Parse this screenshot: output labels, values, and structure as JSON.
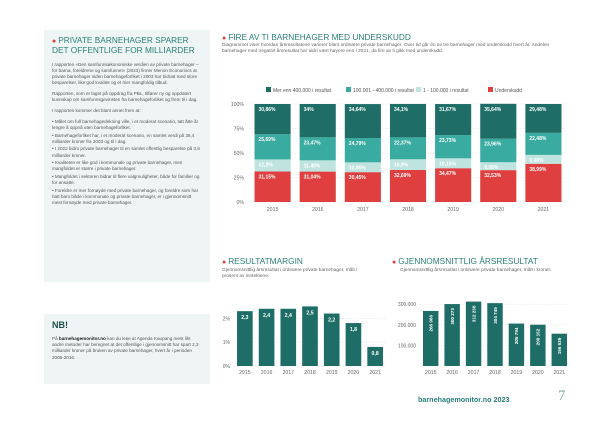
{
  "left": {
    "title": "PRIVATE BARNEHAGER SPARER DET OFFENTLIGE FOR MILLIARDER",
    "para1": "I rapporten «Den samfunnsøkonomiske verdien av private barnehager – for barna, foreldrene og samfunnet» (2023) finner Menon Economics at private barnehager siden barnehageforliket i 2003 har bidratt med store besparelser, like god kvalitet og et mer mangfoldig tilbud.",
    "para2": "Rapporten, som er laget på oppdrag fra PBL, tilfører ny og oppdatert kunnskap om samfunnsgevinsten fra barnehageforliket og frem til i dag.",
    "para3": "I rapporten kommer det blant annet frem at:",
    "bullets": [
      "• Målet om full barnehagedekning ville, i et moderat scenario, tatt åtte år lengre å oppnå uten barnehageforliket.",
      "• Barnehageforliket har, i et moderat scenario, en samlet verdi på 36,4 milliarder kroner fra 2003 og til i dag.",
      "• I 2022 bidro private barnehager til en samlet offentlig besparelse på 3,9 milliarder kroner.",
      "• Kvaliteten er like god i kommunale og private barnehager, men mangfoldet er større i private barnehager.",
      "• Mangfoldet i sektoren bidrar til flere valgmuligheter, både for familier og for ansatte.",
      "• Foreldre er mer fornøyde med private barnehager, og foreldre som har hatt barn både i kommunale og private barnehager, er i gjennomsnitt mest fornøyde med private barnehager."
    ]
  },
  "nb": {
    "title": "NB!",
    "text_pre": "På ",
    "text_bold": "barnehagemonitor.no",
    "text_post": " kan du lese at Agenda Kaupang mest likt andre metoder har beregnet at det offentlige i gjennomsnitt har spart 2,3 milliarder kroner på bruken av private barnehager, hvert år i perioden 2006-2016."
  },
  "main": {
    "title": "FIRE AV TI BARNEHAGER MED UNDERSKUDD",
    "subtitle": "Diagrammet viser hvordan årsresultatene varierer blant ordinære private barnehager. Over tid går én av tre barnehager med underskudd hvert år. Andelen barnehager med negativt årsresultat har aldri vært høyere enn i 2021, da fire av ti gikk med underskudd."
  },
  "margin": {
    "title": "RESULTATMARGIN",
    "subtitle": "Gjennomsnittlig årsresultat i ordinære private barnehager, målt i prosent av inntektene."
  },
  "avg": {
    "title": "GJENNOMSNITTLIG ÅRSRESULTAT",
    "subtitle": "Gjennomsnittlig årsresultat i ordinære private barnehager, målt i kroner."
  },
  "footer": {
    "site": "barnehagemonitor.no 2023",
    "page": "7"
  },
  "colors": {
    "dark": "#1e6e67",
    "teal": "#3aaba0",
    "light": "#bfe3df",
    "red": "#e03f3f"
  },
  "chart_data": [
    {
      "type": "bar",
      "stacked": true,
      "categories": [
        "2015",
        "2016",
        "2017",
        "2018",
        "2019",
        "2020",
        "2021"
      ],
      "series": [
        {
          "name": "Underskudd",
          "values": [
            31.15,
            31.04,
            30.45,
            32.69,
            34.47,
            32.53,
            38.99
          ],
          "labels": [
            "31,15%",
            "31,04%",
            "30,45%",
            "32,69%",
            "34,47%",
            "32,53%",
            "38,99%"
          ],
          "color": "#e03f3f"
        },
        {
          "name": "1 - 100.000 i resultat",
          "values": [
            12.3,
            11.49,
            10.05,
            10.9,
            10.1,
            8.08,
            9.08
          ],
          "labels": [
            "12,3%",
            "11,49%",
            "10,05%",
            "10,9%",
            "10,10%",
            "8,08%",
            "9,08%"
          ],
          "color": "#bfe3df"
        },
        {
          "name": "100.001 - 400.000 i resultat",
          "values": [
            25.69,
            23.47,
            24.79,
            22.37,
            23.73,
            23.96,
            22.48
          ],
          "labels": [
            "25,69%",
            "23,47%",
            "24,79%",
            "22,37%",
            "23,73%",
            "23,96%",
            "22,48%"
          ],
          "color": "#3aaba0"
        },
        {
          "name": "Mer enn 400.000 i resultat",
          "values": [
            30.86,
            34,
            34.64,
            34.1,
            31.67,
            35.64,
            29.48
          ],
          "labels": [
            "30,86%",
            "34%",
            "34,64%",
            "34,1%",
            "31,67%",
            "35,64%",
            "29,48%"
          ],
          "color": "#1e6e67"
        }
      ],
      "yticks": [
        "0%",
        "25%",
        "50%",
        "75%",
        "100%"
      ],
      "ylim": [
        0,
        100
      ],
      "legend": "top"
    },
    {
      "type": "bar",
      "categories": [
        "2015",
        "2016",
        "2017",
        "2018",
        "2019",
        "2020",
        "2021"
      ],
      "values": [
        2.3,
        2.4,
        2.4,
        2.5,
        2.2,
        1.8,
        0.8
      ],
      "labels": [
        "2,3",
        "2,4",
        "2,4",
        "2,5",
        "2,2",
        "1,8",
        "0,8"
      ],
      "yticks": [
        "0%",
        "1%",
        "2%"
      ],
      "ylim": [
        0,
        2.6
      ]
    },
    {
      "type": "bar",
      "categories": [
        "2015",
        "2016",
        "2017",
        "2018",
        "2019",
        "2020",
        "2021"
      ],
      "values": [
        266966,
        300273,
        312238,
        304749,
        205794,
        200152,
        156639
      ],
      "labels": [
        "266 966",
        "300 273",
        "312 238",
        "304 749",
        "205 794",
        "200 152",
        "156 639"
      ],
      "yticks": [
        "100.000",
        "200.000",
        "300.000"
      ],
      "ylim": [
        0,
        320000
      ]
    }
  ]
}
